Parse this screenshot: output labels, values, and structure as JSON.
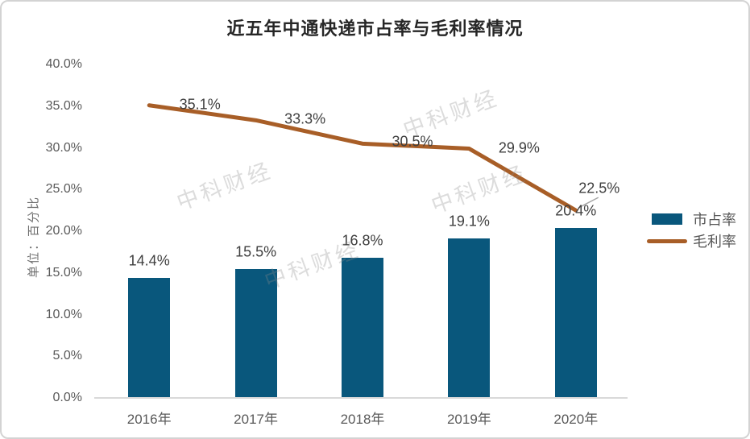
{
  "title": "近五年中通快递市占率与毛利率情况",
  "watermark_text": "中科财经",
  "colors": {
    "bar": "#09577c",
    "line": "#a85e27",
    "axis": "#d9d9d9",
    "leader": "#a6a6a6"
  },
  "chart_data": {
    "type": "bar",
    "subtype": "bar-line-combo",
    "title": "近五年中通快递市占率与毛利率情况",
    "categories": [
      "2016年",
      "2017年",
      "2018年",
      "2019年",
      "2020年"
    ],
    "series": [
      {
        "name": "市占率",
        "type": "bar",
        "color": "#09577c",
        "values": [
          14.4,
          15.5,
          16.8,
          19.1,
          20.4
        ],
        "labels": [
          "14.4%",
          "15.5%",
          "16.8%",
          "19.1%",
          "20.4%"
        ]
      },
      {
        "name": "毛利率",
        "type": "line",
        "color": "#a85e27",
        "values": [
          35.1,
          33.3,
          30.5,
          29.9,
          22.5
        ],
        "labels": [
          "35.1%",
          "33.3%",
          "30.5%",
          "29.9%",
          "22.5%"
        ]
      }
    ],
    "xlabel": "",
    "ylabel": "单位：百分比",
    "ylim": [
      0,
      40
    ],
    "ytick_step": 5,
    "ytick_labels": [
      "0.0%",
      "5.0%",
      "10.0%",
      "15.0%",
      "20.0%",
      "25.0%",
      "30.0%",
      "35.0%",
      "40.0%"
    ],
    "grid": false,
    "legend_position": "right"
  }
}
